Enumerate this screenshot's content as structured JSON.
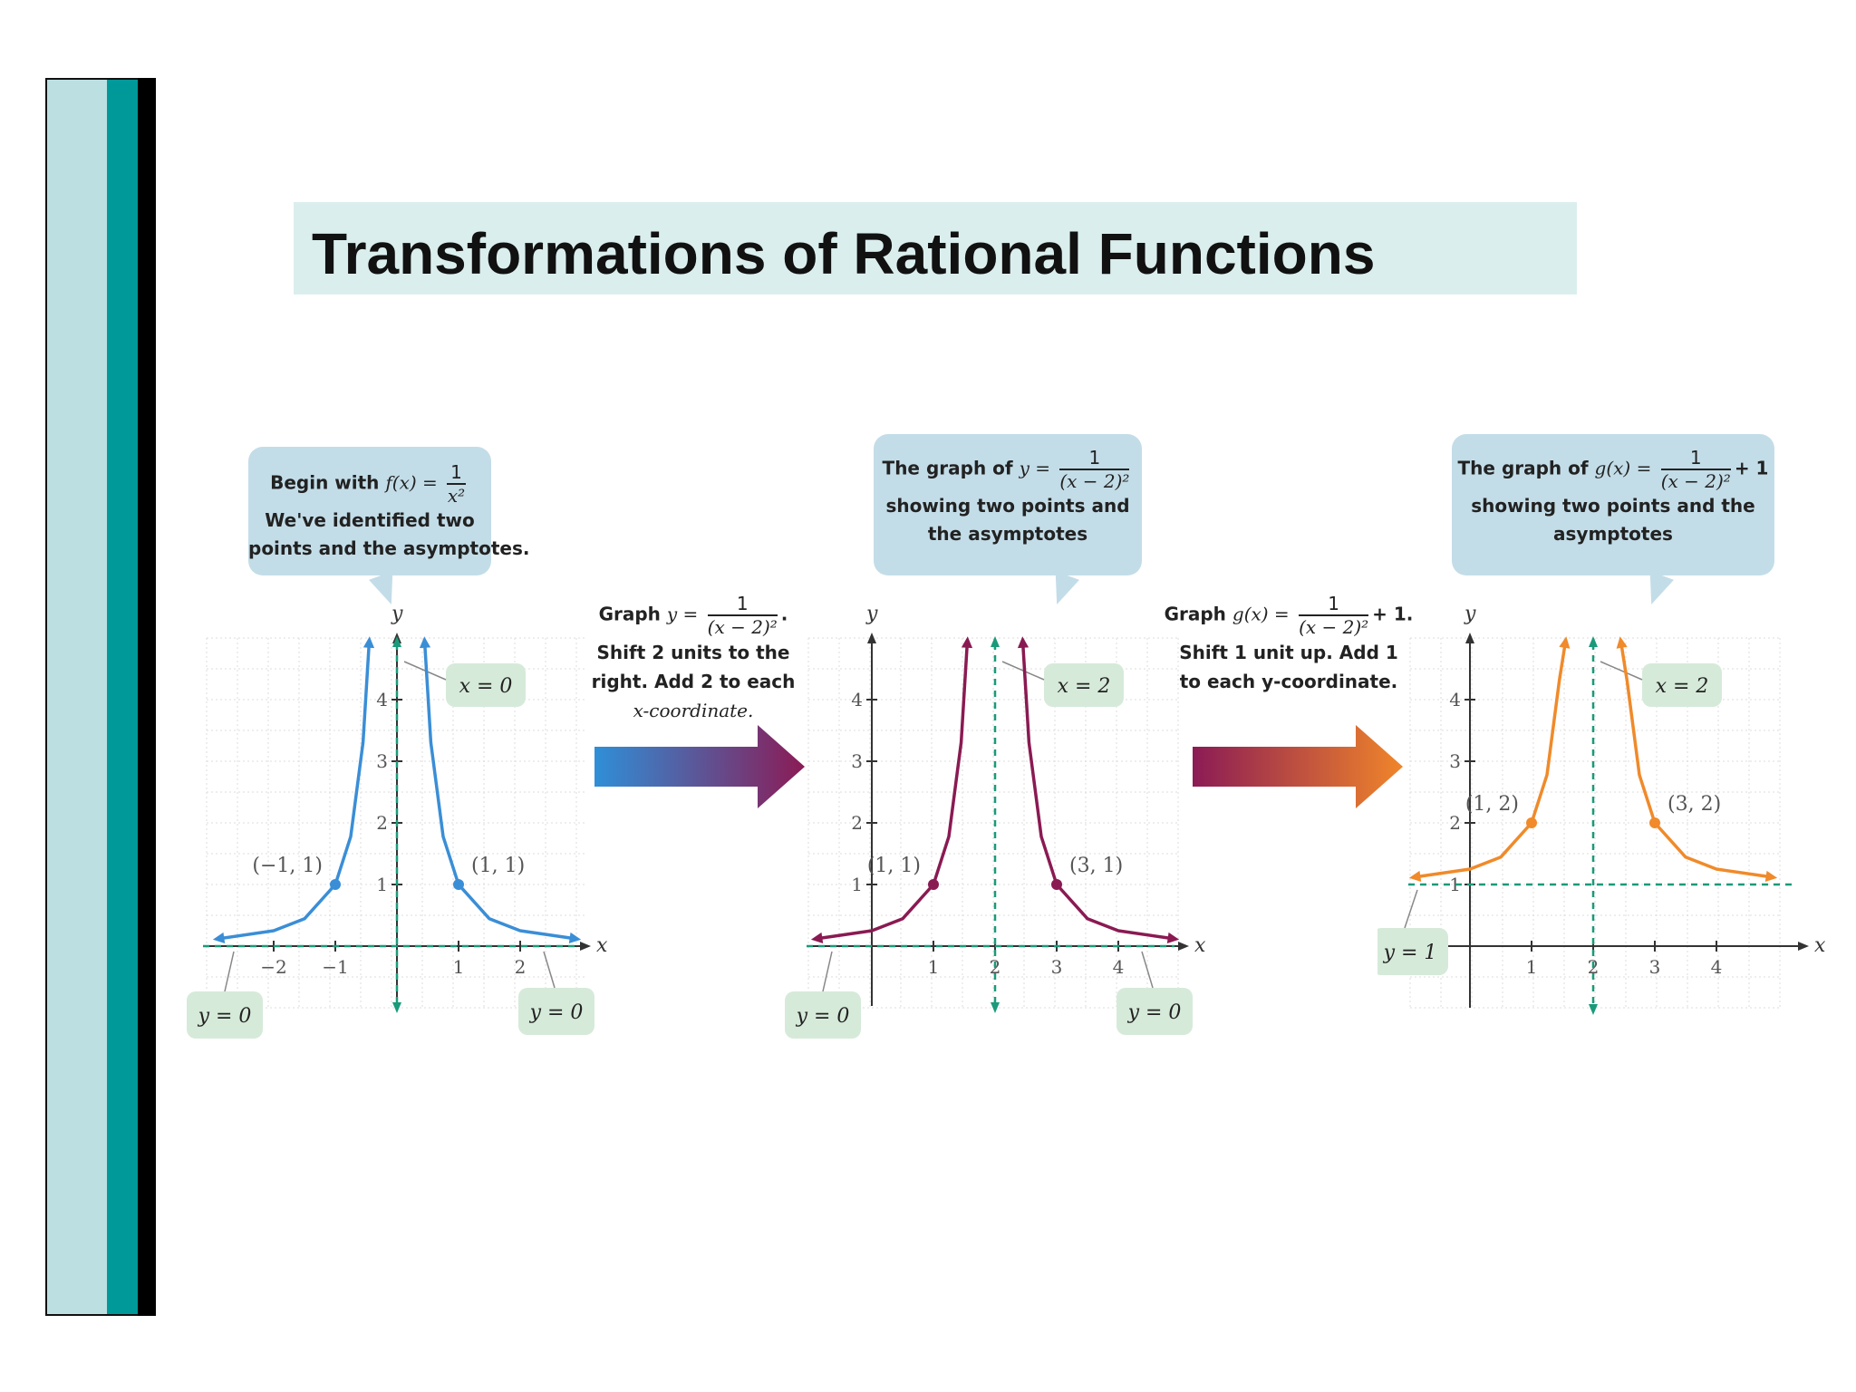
{
  "title": "Transformations of Rational Functions",
  "callouts": {
    "left": {
      "begin": "Begin with ",
      "fx": "f(x) = ",
      "num": "1",
      "den": "x²",
      "line2": "We've identified two",
      "line3": "points and the asymptotes."
    },
    "middle": {
      "prefix": "The graph of ",
      "y": "y = ",
      "num": "1",
      "den": "(x − 2)²",
      "line2": "showing two points and",
      "line3": "the asymptotes"
    },
    "right": {
      "prefix": "The graph of ",
      "gx": "g(x) = ",
      "num": "1",
      "den": "(x − 2)²",
      "plus": "+ 1",
      "line2": "showing two points and the",
      "line3": "asymptotes"
    }
  },
  "steps": {
    "step1": {
      "prefix": "Graph ",
      "y": "y = ",
      "num": "1",
      "den": "(x − 2)²",
      "suffix": ".",
      "line2": "Shift 2 units to the",
      "line3": "right. Add 2 to each",
      "line4": "x-coordinate."
    },
    "step2": {
      "prefix": "Graph ",
      "gx": "g(x) = ",
      "num": "1",
      "den": "(x − 2)²",
      "suffix": "+ 1.",
      "line2": "Shift 1 unit up. Add 1",
      "line3": "to each y-coordinate."
    }
  },
  "colors": {
    "blue": "#3a8ed6",
    "magenta": "#8a1a52",
    "orange": "#f08a2a",
    "asymptote": "#1a9a7a",
    "label_bg": "#d6ead9",
    "arrow1": [
      "#2f8fd8",
      "#8b1b55"
    ],
    "arrow2": [
      "#8b1b55",
      "#f0852a"
    ]
  },
  "chart_data": [
    {
      "type": "line",
      "function": "y = 1/x^2",
      "xlabel": "x",
      "ylabel": "y",
      "xlim": [
        -3,
        3
      ],
      "ylim": [
        -1,
        5
      ],
      "xticks": [
        "−2",
        "−1",
        "1",
        "2"
      ],
      "yticks": [
        "1",
        "2",
        "3",
        "4"
      ],
      "series": [
        {
          "color": "#3a8ed6",
          "points": [
            [
              -2.9,
              0.119
            ],
            [
              -2,
              0.25
            ],
            [
              -1.5,
              0.444
            ],
            [
              -1,
              1
            ],
            [
              -0.75,
              1.778
            ],
            [
              -0.55,
              3.306
            ],
            [
              -0.45,
              4.938
            ],
            [
              0.45,
              4.938
            ],
            [
              0.55,
              3.306
            ],
            [
              0.75,
              1.778
            ],
            [
              1,
              1
            ],
            [
              1.5,
              0.444
            ],
            [
              2,
              0.25
            ],
            [
              2.9,
              0.119
            ]
          ]
        }
      ],
      "points": [
        {
          "x": -1,
          "y": 1,
          "label": "(−1, 1)"
        },
        {
          "x": 1,
          "y": 1,
          "label": "(1, 1)"
        }
      ],
      "asymptotes": [
        {
          "kind": "vertical",
          "value": 0,
          "label": "x = 0"
        },
        {
          "kind": "horizontal",
          "value": 0,
          "label": "y = 0",
          "label2": "y = 0"
        }
      ]
    },
    {
      "type": "line",
      "function": "y = 1/(x-2)^2",
      "xlabel": "x",
      "ylabel": "y",
      "xlim": [
        -1,
        5
      ],
      "ylim": [
        -1,
        5
      ],
      "xticks": [
        "1",
        "2",
        "3",
        "4"
      ],
      "yticks": [
        "1",
        "2",
        "3",
        "4"
      ],
      "series": [
        {
          "color": "#8a1a52",
          "points": [
            [
              -0.9,
              0.119
            ],
            [
              0,
              0.25
            ],
            [
              0.5,
              0.444
            ],
            [
              1,
              1
            ],
            [
              1.25,
              1.778
            ],
            [
              1.45,
              3.306
            ],
            [
              1.55,
              4.938
            ],
            [
              2.45,
              4.938
            ],
            [
              2.55,
              3.306
            ],
            [
              2.75,
              1.778
            ],
            [
              3,
              1
            ],
            [
              3.5,
              0.444
            ],
            [
              4,
              0.25
            ],
            [
              4.9,
              0.119
            ]
          ]
        }
      ],
      "points": [
        {
          "x": 1,
          "y": 1,
          "label": "(1, 1)"
        },
        {
          "x": 3,
          "y": 1,
          "label": "(3, 1)"
        }
      ],
      "asymptotes": [
        {
          "kind": "vertical",
          "value": 2,
          "label": "x = 2"
        },
        {
          "kind": "horizontal",
          "value": 0,
          "label": "y = 0",
          "label2": "y = 0"
        }
      ]
    },
    {
      "type": "line",
      "function": "g(x) = 1/(x-2)^2 + 1",
      "xlabel": "x",
      "ylabel": "y",
      "xlim": [
        -1,
        5
      ],
      "ylim": [
        -1,
        5
      ],
      "xticks": [
        "1",
        "2",
        "3",
        "4"
      ],
      "yticks": [
        "1",
        "2",
        "3",
        "4"
      ],
      "series": [
        {
          "color": "#f08a2a",
          "points": [
            [
              -0.9,
              1.119
            ],
            [
              0,
              1.25
            ],
            [
              0.5,
              1.444
            ],
            [
              1,
              2
            ],
            [
              1.25,
              2.778
            ],
            [
              1.45,
              4.306
            ],
            [
              1.55,
              4.938
            ],
            [
              2.45,
              4.938
            ],
            [
              2.55,
              4.306
            ],
            [
              2.75,
              2.778
            ],
            [
              3,
              2
            ],
            [
              3.5,
              1.444
            ],
            [
              4,
              1.25
            ],
            [
              4.9,
              1.119
            ]
          ]
        }
      ],
      "points": [
        {
          "x": 1,
          "y": 2,
          "label": "(1, 2)"
        },
        {
          "x": 3,
          "y": 2,
          "label": "(3, 2)"
        }
      ],
      "asymptotes": [
        {
          "kind": "vertical",
          "value": 2,
          "label": "x = 2"
        },
        {
          "kind": "horizontal",
          "value": 1,
          "label": "y = 1"
        }
      ]
    }
  ]
}
